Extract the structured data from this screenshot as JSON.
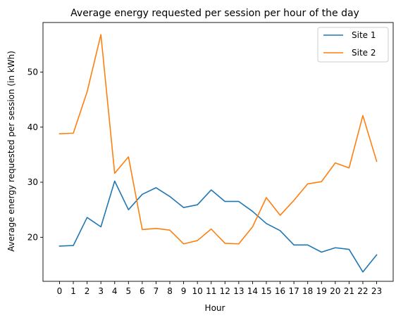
{
  "chart_data": {
    "type": "line",
    "title": "Average energy requested per session per hour of the day",
    "xlabel": "Hour",
    "ylabel": "Average energy requested per session (in kWh)",
    "x": [
      0,
      1,
      2,
      3,
      4,
      5,
      6,
      7,
      8,
      9,
      10,
      11,
      12,
      13,
      14,
      15,
      16,
      17,
      18,
      19,
      20,
      21,
      22,
      23
    ],
    "x_tick_labels": [
      "0",
      "1",
      "2",
      "3",
      "4",
      "5",
      "6",
      "7",
      "8",
      "9",
      "10",
      "11",
      "12",
      "13",
      "14",
      "15",
      "16",
      "17",
      "18",
      "19",
      "20",
      "21",
      "22",
      "23"
    ],
    "y_ticks": [
      20,
      30,
      40,
      50
    ],
    "y_tick_labels": [
      "20",
      "30",
      "40",
      "50"
    ],
    "xlim": [
      -1.2,
      24.2
    ],
    "ylim": [
      12.0,
      59.0
    ],
    "grid": false,
    "legend_position": "top-right",
    "series": [
      {
        "name": "Site 1",
        "color": "#1f77b4",
        "values": [
          18.4,
          18.5,
          23.6,
          21.9,
          30.2,
          25.0,
          27.8,
          29.0,
          27.4,
          25.4,
          25.9,
          28.6,
          26.5,
          26.5,
          24.7,
          22.5,
          21.2,
          18.6,
          18.6,
          17.3,
          18.1,
          17.8,
          13.7,
          16.8
        ]
      },
      {
        "name": "Site 2",
        "color": "#ff7f0e",
        "values": [
          38.8,
          38.9,
          46.4,
          56.8,
          31.6,
          34.6,
          21.4,
          21.6,
          21.3,
          18.8,
          19.4,
          21.5,
          18.9,
          18.8,
          21.9,
          27.2,
          24.0,
          26.7,
          29.7,
          30.1,
          33.5,
          32.6,
          42.1,
          33.8
        ]
      }
    ]
  }
}
